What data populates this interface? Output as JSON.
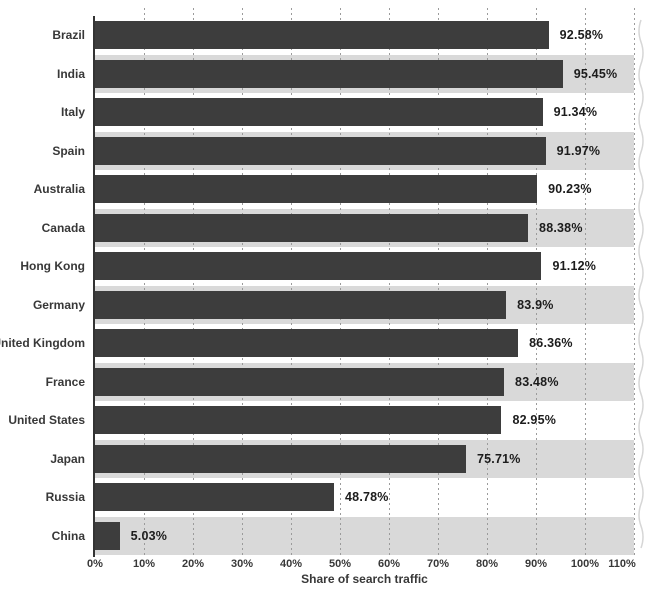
{
  "chart_data": {
    "type": "bar",
    "orientation": "horizontal",
    "xlabel": "Share of search traffic",
    "xlim": [
      0,
      110
    ],
    "x_ticks": [
      "0%",
      "10%",
      "20%",
      "30%",
      "40%",
      "50%",
      "60%",
      "70%",
      "80%",
      "90%",
      "100%",
      "110%"
    ],
    "grid": true,
    "grid_style": "dashed-vertical",
    "legend": "none",
    "categories": [
      "Brazil",
      "India",
      "Italy",
      "Spain",
      "Australia",
      "Canada",
      "Hong Kong",
      "Germany",
      "United Kingdom",
      "France",
      "United States",
      "Japan",
      "Russia",
      "China"
    ],
    "values": [
      92.58,
      95.45,
      91.34,
      91.97,
      90.23,
      88.38,
      91.12,
      83.9,
      86.36,
      83.48,
      82.95,
      75.71,
      48.78,
      5.03
    ],
    "value_labels": [
      "92.58%",
      "95.45%",
      "91.34%",
      "91.97%",
      "90.23%",
      "88.38%",
      "91.12%",
      "83.9%",
      "86.36%",
      "83.48%",
      "82.95%",
      "75.71%",
      "48.78%",
      "5.03%"
    ],
    "colors": {
      "bar": "#3d3d3d",
      "row_band_alt": "#d9d9d9",
      "row_band": "#ffffff",
      "grid": "#9b9b9b",
      "axis": "#333333",
      "text": "#383838",
      "value_text": "#1c1c1c",
      "background": "#ffffff",
      "torn_edge": "#d6d6d6"
    }
  }
}
